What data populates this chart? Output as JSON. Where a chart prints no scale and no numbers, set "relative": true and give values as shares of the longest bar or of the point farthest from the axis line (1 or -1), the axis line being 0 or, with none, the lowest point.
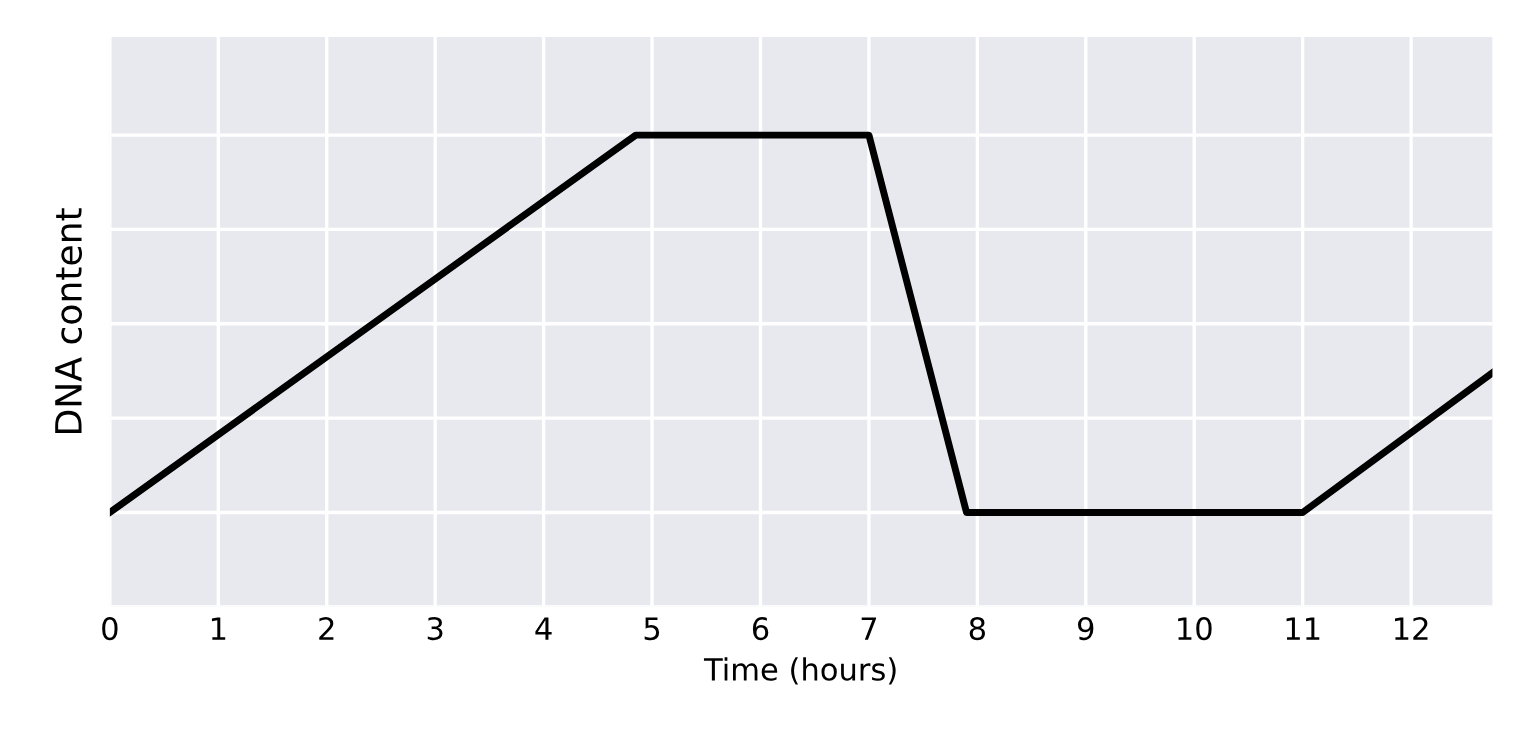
{
  "chart_data": {
    "type": "line",
    "relative": true,
    "xlabel": "Time (hours)",
    "ylabel": "DNA content",
    "x": [
      0,
      4.85,
      7.0,
      7.9,
      11.0,
      12.75
    ],
    "series": [
      {
        "color": "#000000",
        "values": [
          0,
          1,
          1,
          0,
          0,
          0.37
        ]
      }
    ],
    "xlim": [
      0,
      12.75
    ],
    "xticks": [
      0,
      1,
      2,
      3,
      4,
      5,
      6,
      7,
      8,
      9,
      10,
      11,
      12
    ],
    "grid": true,
    "line_style": "solid",
    "marker": "none"
  }
}
